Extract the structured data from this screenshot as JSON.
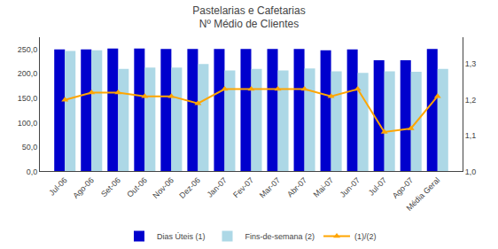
{
  "chart_data": {
    "type": "bar",
    "title": "Pastelarias e Cafetarias",
    "subtitle": "Nº Médio de Clientes",
    "categories": [
      "Jul-06",
      "Ago-06",
      "Set-06",
      "Out-06",
      "Nov-06",
      "Dez-06",
      "Jan-07",
      "Fev-07",
      "Mar-07",
      "Abr-07",
      "Mai-07",
      "Jun-07",
      "Jul-07",
      "Ago-07",
      "Média Geral"
    ],
    "series": [
      {
        "name": "Dias Úteis (1)",
        "color": "#0000CD",
        "values": [
          250,
          250,
          252,
          252,
          251,
          251,
          251,
          251,
          251,
          251,
          248,
          250,
          228,
          228,
          251
        ]
      },
      {
        "name": "Fins-de-semana (2)",
        "color": "#ADD8E6",
        "values": [
          247,
          248,
          210,
          213,
          213,
          220,
          207,
          210,
          207,
          211,
          205,
          202,
          205,
          204,
          210
        ]
      },
      {
        "name": "(1)/(2)",
        "type": "line",
        "color": "#FFA500",
        "marker": "triangle",
        "axis": "y2",
        "values": [
          1.2,
          1.22,
          1.22,
          1.21,
          1.21,
          1.19,
          1.23,
          1.23,
          1.23,
          1.23,
          1.21,
          1.23,
          1.11,
          1.12,
          1.21
        ]
      }
    ],
    "ylim": [
      0,
      275
    ],
    "yticks": [
      {
        "value": 0,
        "label": "0,0"
      },
      {
        "value": 50,
        "label": "50,0"
      },
      {
        "value": 100,
        "label": "100,0"
      },
      {
        "value": 150,
        "label": "150,0"
      },
      {
        "value": 200,
        "label": "200,0"
      },
      {
        "value": 250,
        "label": "250,0"
      }
    ],
    "y2lim": [
      1.0,
      1.375
    ],
    "y2ticks": [
      {
        "value": 1.0,
        "label": "1,0"
      },
      {
        "value": 1.1,
        "label": "1,1"
      },
      {
        "value": 1.2,
        "label": "1,2"
      },
      {
        "value": 1.3,
        "label": "1,3"
      }
    ],
    "grid": false,
    "legend": "bottom"
  }
}
